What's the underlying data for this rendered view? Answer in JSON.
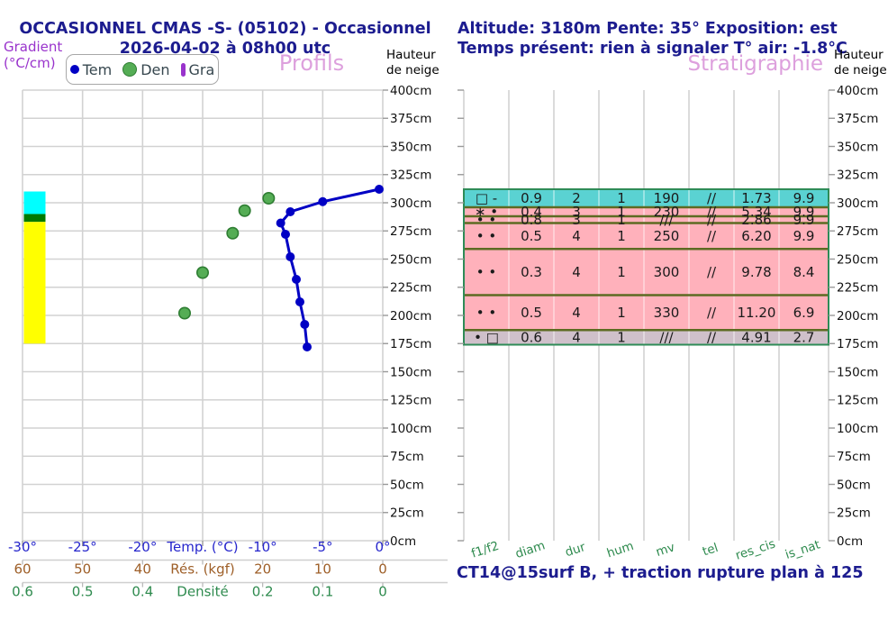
{
  "titles": {
    "left_line1": "OCCASIONNEL CMAS -S- (05102) - Occasionnel",
    "left_line2": "2026-04-02 à 08h00 utc",
    "profils": "Profils",
    "stratigraphie": "Stratigraphie"
  },
  "labels": {
    "gradient_line1": "Gradient",
    "gradient_line2": "(°C/cm)",
    "hauteur_line1": "Hauteur",
    "hauteur_line2": "de neige"
  },
  "header_right": {
    "line1": "Altitude: 3180m Pente: 35° Exposition: est",
    "line2": "Temps présent: rien à signaler T° air: -1.8°C"
  },
  "footer_note": "CT14@15surf B, + traction rupture plan à 125",
  "legend": {
    "items": [
      {
        "label": "Tem",
        "marker": "temp-dot",
        "color": "#0000c4"
      },
      {
        "label": "Den",
        "marker": "density-circle",
        "color": "#55ad55"
      },
      {
        "label": "Gra",
        "marker": "gradient-bar",
        "color": "#9933cc"
      }
    ]
  },
  "colors": {
    "navy_text": "#1c1c8f",
    "panel_title_pink": "#dda0dd",
    "gradient_label_purple": "#9933cc",
    "temp_axis_blue": "#2626cc",
    "resistance_axis_brown": "#9e5f28",
    "density_axis_green": "#2f8b4f",
    "grid_gray": "#d2d2d2",
    "table_inner_border_olive": "#5d6b22",
    "table_outer_border_green": "#2e8b57"
  },
  "chart_data": [
    {
      "type": "line",
      "title": "Profils",
      "y_axis": {
        "label": "Hauteur de neige",
        "unit": "cm",
        "min": 0,
        "max": 400,
        "tick_step": 25
      },
      "x_axes": [
        {
          "name": "temp",
          "color": "#2626cc",
          "min": -30,
          "max": 0,
          "tick_labels": [
            "-30°",
            "-25°",
            "-20°",
            "Temp. (°C)",
            "-10°",
            "-5°",
            "0°"
          ]
        },
        {
          "name": "resistance",
          "color": "#9e5f28",
          "min": 60,
          "max": 0,
          "tick_labels": [
            "60",
            "50",
            "40",
            "Rés. (kgf)",
            "20",
            "10",
            "0"
          ]
        },
        {
          "name": "densite",
          "color": "#2f8b4f",
          "min": 0.6,
          "max": 0,
          "tick_labels": [
            "0.6",
            "0.5",
            "0.4",
            "Densité",
            "0.2",
            "0.1",
            "0"
          ]
        }
      ],
      "series": [
        {
          "name": "Tem",
          "type": "line",
          "color": "#0000c4",
          "points_temp_height": [
            [
              -0.3,
              312
            ],
            [
              -5.0,
              301
            ],
            [
              -7.7,
              292
            ],
            [
              -8.5,
              282
            ],
            [
              -8.1,
              272
            ],
            [
              -7.7,
              252
            ],
            [
              -7.2,
              232
            ],
            [
              -6.9,
              212
            ],
            [
              -6.5,
              192
            ],
            [
              -6.3,
              172
            ]
          ]
        },
        {
          "name": "Den",
          "type": "scatter",
          "color": "#55ad55",
          "points_density_height": [
            [
              0.19,
              304
            ],
            [
              0.23,
              293
            ],
            [
              0.25,
              273
            ],
            [
              0.3,
              238
            ],
            [
              0.33,
              202
            ]
          ]
        },
        {
          "name": "Gra",
          "type": "bar",
          "segments": [
            {
              "color": "#00ffff",
              "top_cm": 310,
              "bottom_cm": 290
            },
            {
              "color": "#007a00",
              "top_cm": 290,
              "bottom_cm": 283
            },
            {
              "color": "#ffff00",
              "top_cm": 283,
              "bottom_cm": 175
            }
          ]
        }
      ]
    },
    {
      "type": "table",
      "title": "Stratigraphie",
      "columns": [
        "f1/f2",
        "diam",
        "dur",
        "hum",
        "mv",
        "tel",
        "res_cis",
        "is_nat"
      ],
      "y_axis": {
        "label": "Hauteur de neige",
        "unit": "cm",
        "min": 0,
        "max": 400,
        "tick_step": 25
      },
      "layers": [
        {
          "top_cm": 312,
          "bottom_cm": 296,
          "bg": "#5ad2d2",
          "cells": [
            "□ -",
            "0.9",
            "2",
            "1",
            "190",
            "//",
            "1.73",
            "9.9"
          ]
        },
        {
          "top_cm": 296,
          "bottom_cm": 288,
          "bg": "#ffb1bb",
          "cells": [
            "∗ •",
            "0.4",
            "3",
            "1",
            "230",
            "//",
            "5.34",
            "9.9"
          ]
        },
        {
          "top_cm": 288,
          "bottom_cm": 282,
          "bg": "#ffb1bb",
          "cells": [
            "• •",
            "0.8",
            "3",
            "1",
            "///",
            "//",
            "2.86",
            "9.9"
          ]
        },
        {
          "top_cm": 282,
          "bottom_cm": 259,
          "bg": "#ffb1bb",
          "cells": [
            "• •",
            "0.5",
            "4",
            "1",
            "250",
            "//",
            "6.20",
            "9.9"
          ]
        },
        {
          "top_cm": 259,
          "bottom_cm": 218,
          "bg": "#ffb1bb",
          "cells": [
            "• •",
            "0.3",
            "4",
            "1",
            "300",
            "//",
            "9.78",
            "8.4"
          ]
        },
        {
          "top_cm": 218,
          "bottom_cm": 187,
          "bg": "#ffb1bb",
          "cells": [
            "• •",
            "0.5",
            "4",
            "1",
            "330",
            "//",
            "11.20",
            "6.9"
          ]
        },
        {
          "top_cm": 187,
          "bottom_cm": 174,
          "bg": "#cfc0ca",
          "cells": [
            "• □",
            "0.6",
            "4",
            "1",
            "///",
            "//",
            "4.91",
            "2.7"
          ]
        }
      ]
    }
  ]
}
